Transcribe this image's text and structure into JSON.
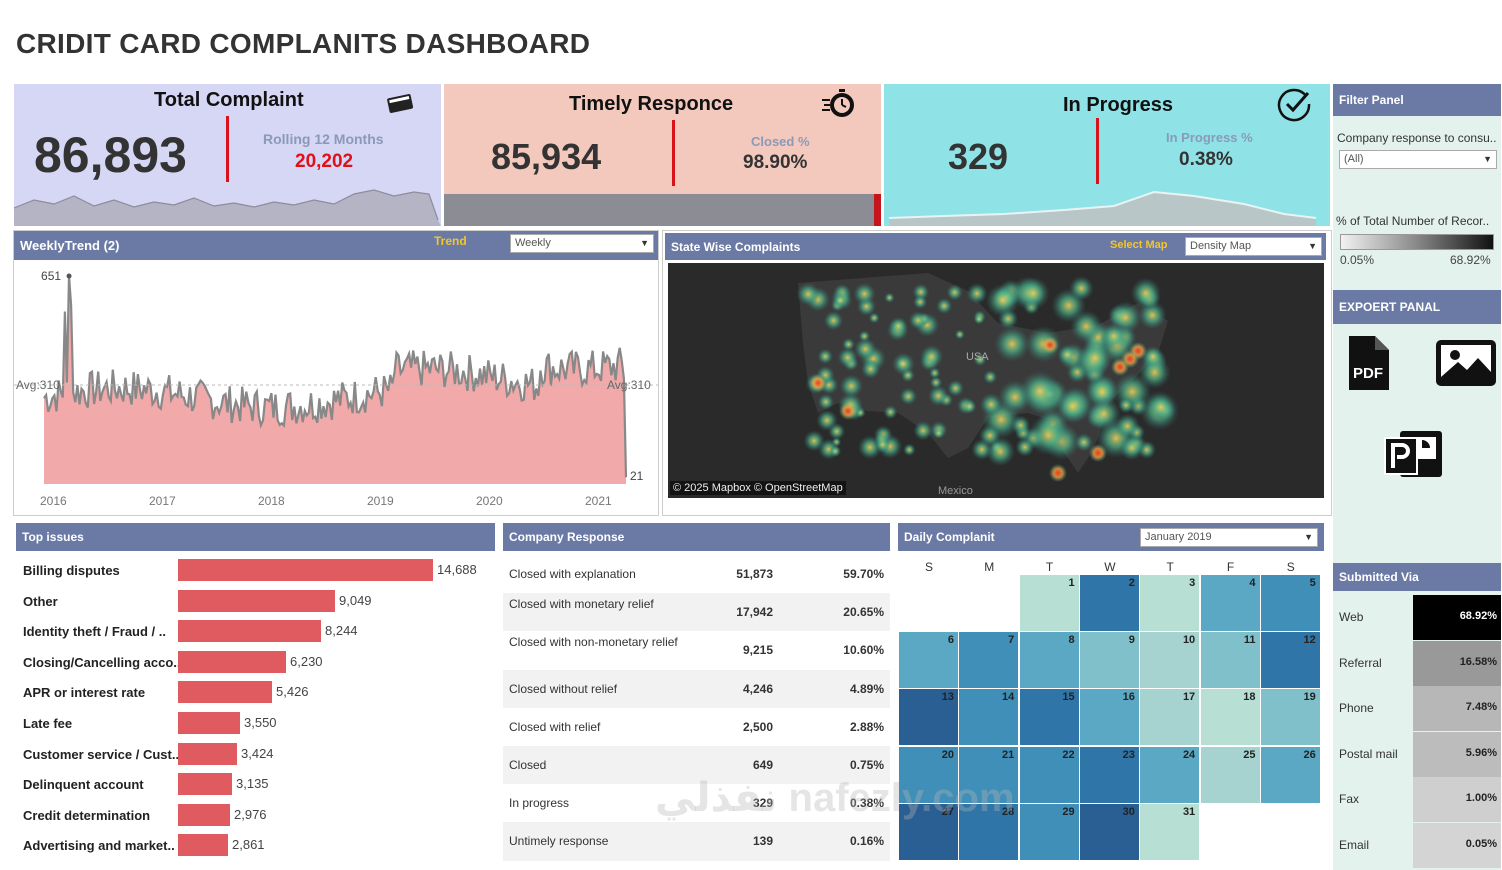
{
  "title": "CRIDIT CARD COMPLANITS DASHBOARD",
  "kpis": {
    "total": {
      "title": "Total Complaint",
      "value": "86,893",
      "sub_label": "Rolling 12 Months",
      "sub_value": "20,202"
    },
    "timely": {
      "title": "Timely Responce",
      "value": "85,934",
      "sub_label": "Closed %",
      "sub_value": "98.90%"
    },
    "progress": {
      "title": "In Progress",
      "value": "329",
      "sub_label": "In Progress %",
      "sub_value": "0.38%"
    }
  },
  "filter_panel": {
    "header": "Filter Panel",
    "field_label": "Company response to consu..",
    "selected": "(All)",
    "legend_label": "% of Total Number of Recor..",
    "legend_min": "0.05%",
    "legend_max": "68.92%"
  },
  "export_panel": {
    "header": "EXPOERT PANAL",
    "pdf_label": "PDF"
  },
  "weekly": {
    "header": "WeeklyTrend (2)",
    "trend_label": "Trend",
    "trend_selected": "Weekly",
    "peak_label": "651",
    "avg_left": "Avg:310",
    "avg_right": "Avg:310",
    "end_label": "21",
    "years": [
      "2016",
      "2017",
      "2018",
      "2019",
      "2020",
      "2021"
    ]
  },
  "map": {
    "header": "State Wise Complaints",
    "select_label": "Select Map",
    "selected": "Density Map",
    "country_label": "USA",
    "mexico_label": "Mexico",
    "attribution": "© 2025 Mapbox © OpenStreetMap"
  },
  "top_issues": {
    "header": "Top issues",
    "items": [
      {
        "label": "Billing disputes",
        "value": 14688,
        "display": "14,688"
      },
      {
        "label": "Other",
        "value": 9049,
        "display": "9,049"
      },
      {
        "label": "Identity theft / Fraud / ..",
        "value": 8244,
        "display": "8,244"
      },
      {
        "label": "Closing/Cancelling acco..",
        "value": 6230,
        "display": "6,230"
      },
      {
        "label": "APR or interest rate",
        "value": 5426,
        "display": "5,426"
      },
      {
        "label": "Late fee",
        "value": 3550,
        "display": "3,550"
      },
      {
        "label": "Customer service / Cust..",
        "value": 3424,
        "display": "3,424"
      },
      {
        "label": "Delinquent account",
        "value": 3135,
        "display": "3,135"
      },
      {
        "label": "Credit determination",
        "value": 2976,
        "display": "2,976"
      },
      {
        "label": "Advertising and market..",
        "value": 2861,
        "display": "2,861"
      }
    ]
  },
  "company_response": {
    "header": "Company Response",
    "rows": [
      {
        "label": "Closed with explanation",
        "count": "51,873",
        "pct": "59.70%"
      },
      {
        "label": "Closed with monetary relief",
        "count": "17,942",
        "pct": "20.65%"
      },
      {
        "label": "Closed with non-monetary relief",
        "count": "9,215",
        "pct": "10.60%"
      },
      {
        "label": "Closed without relief",
        "count": "4,246",
        "pct": "4.89%"
      },
      {
        "label": "Closed with relief",
        "count": "2,500",
        "pct": "2.88%"
      },
      {
        "label": "Closed",
        "count": "649",
        "pct": "0.75%"
      },
      {
        "label": "In progress",
        "count": "329",
        "pct": "0.38%"
      },
      {
        "label": "Untimely response",
        "count": "139",
        "pct": "0.16%"
      }
    ]
  },
  "daily": {
    "header": "Daily Complanit",
    "selected_month": "January 2019",
    "dow": [
      "S",
      "M",
      "T",
      "W",
      "T",
      "F",
      "S"
    ],
    "first_weekday": 2,
    "day_levels": [
      0.1,
      0.85,
      0.1,
      0.45,
      0.6,
      0.55,
      0.65,
      0.5,
      0.35,
      0.2,
      0.4,
      0.85,
      0.95,
      0.6,
      0.85,
      0.5,
      0.25,
      0.1,
      0.3,
      0.6,
      0.65,
      0.7,
      0.85,
      0.45,
      0.25,
      0.55,
      0.9,
      0.85,
      0.7,
      0.9,
      0.05
    ]
  },
  "submitted_via": {
    "header": "Submitted Via",
    "rows": [
      {
        "label": "Web",
        "pct": "68.92%",
        "level": 1.0
      },
      {
        "label": "Referral",
        "pct": "16.58%",
        "level": 0.35
      },
      {
        "label": "Phone",
        "pct": "7.48%",
        "level": 0.22
      },
      {
        "label": "Postal mail",
        "pct": "5.96%",
        "level": 0.2
      },
      {
        "label": "Fax",
        "pct": "1.00%",
        "level": 0.12
      },
      {
        "label": "Email",
        "pct": "0.05%",
        "level": 0.1
      }
    ]
  },
  "watermark": "نفذلي nafezly.com"
}
